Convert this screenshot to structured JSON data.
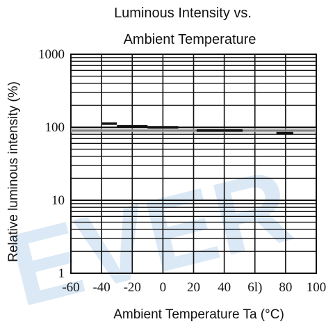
{
  "chart_data": {
    "type": "line",
    "title": [
      "Luminous Intensity vs.",
      "Ambient Temperature"
    ],
    "xlabel": "Ambient Temperature Ta (°C)",
    "ylabel": "Relative luminous intensity (%)",
    "x_scale": "linear",
    "y_scale": "log",
    "xlim": [
      -60,
      100
    ],
    "ylim": [
      1,
      1000
    ],
    "x_ticks": [
      -60,
      -40,
      -20,
      0,
      20,
      40,
      60,
      80,
      100
    ],
    "x_tick_labels": [
      "-60",
      "-40",
      "-20",
      "0",
      "20",
      "40",
      "6l)",
      "80",
      "100"
    ],
    "y_ticks": [
      1,
      10,
      100,
      1000
    ],
    "y_tick_labels": [
      "1",
      "10",
      "100",
      "1000"
    ],
    "grid": true,
    "series": [
      {
        "segments": [
          {
            "x": [
              -40,
              -30
            ],
            "y": [
              112,
              112
            ]
          },
          {
            "x": [
              -30,
              -10
            ],
            "y": [
              103,
              103
            ]
          },
          {
            "x": [
              -10,
              10
            ],
            "y": [
              100,
              100
            ]
          },
          {
            "x": [
              22,
              52
            ],
            "y": [
              90,
              90
            ]
          },
          {
            "x": [
              74,
              85
            ],
            "y": [
              83,
              83
            ]
          }
        ]
      }
    ],
    "band": {
      "y": [
        85,
        97
      ]
    }
  },
  "watermark": "EVER",
  "colors": {
    "grid": "#111111",
    "band": "#9a9a9a",
    "line": "#111111",
    "watermark": "#dbe9f6"
  }
}
